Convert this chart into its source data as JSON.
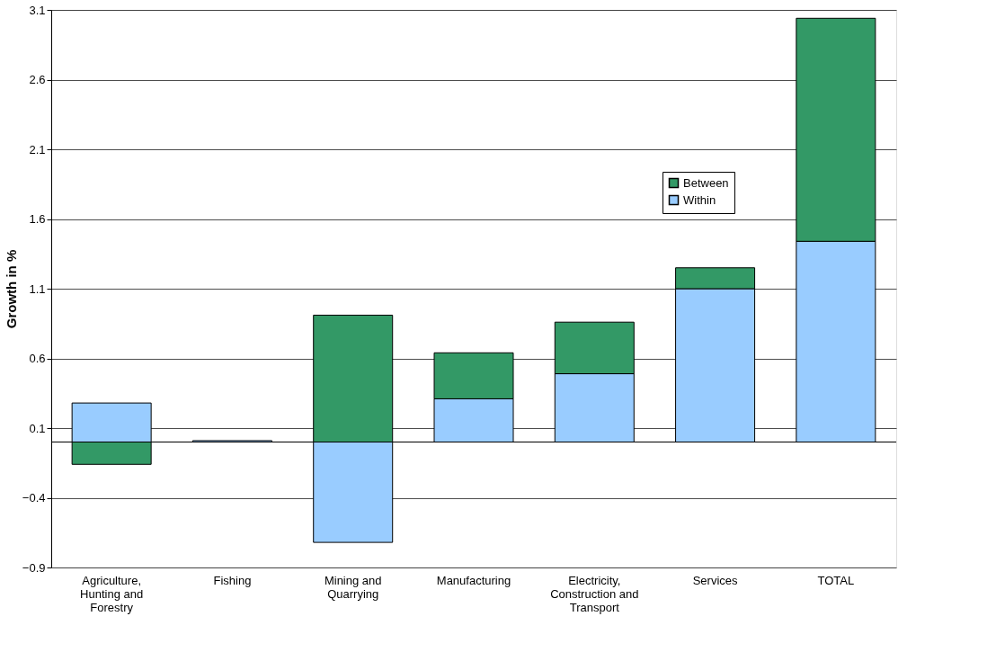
{
  "chart_data": {
    "type": "bar",
    "stacked": true,
    "ylabel": "Growth in %",
    "categories": [
      "Agriculture, Hunting and Forestry",
      "Fishing",
      "Mining and Quarrying",
      "Manufacturing",
      "Electricity, Construction and Transport",
      "Services",
      "TOTAL"
    ],
    "series": [
      {
        "name": "Within",
        "color": "#99ccff",
        "values": [
          0.28,
          0.01,
          -0.72,
          0.31,
          0.49,
          1.1,
          1.44
        ]
      },
      {
        "name": "Between",
        "color": "#339966",
        "values": [
          -0.16,
          null,
          0.91,
          0.33,
          0.37,
          0.15,
          1.6
        ]
      }
    ],
    "ylim": [
      -0.9,
      3.1
    ],
    "yticks": [
      -0.9,
      -0.4,
      0.1,
      0.6,
      1.1,
      1.6,
      2.1,
      2.6,
      3.1
    ],
    "grid": "y",
    "legend": "top right"
  }
}
